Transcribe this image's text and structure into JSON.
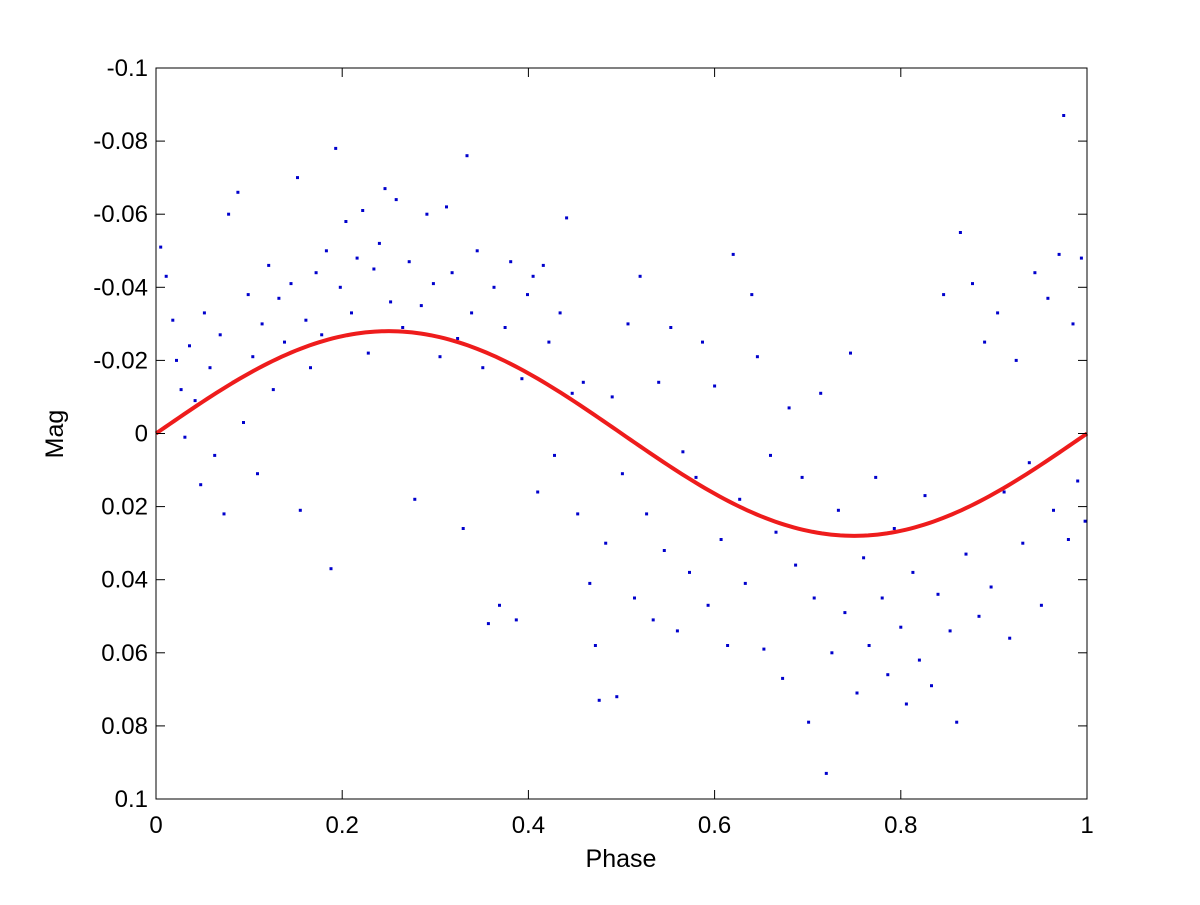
{
  "chart_data": {
    "type": "scatter",
    "xlabel": "Phase",
    "ylabel": "Mag",
    "xlim": [
      0,
      1
    ],
    "ylim": [
      -0.1,
      0.1
    ],
    "y_reversed": true,
    "grid": false,
    "x_ticks": [
      0,
      0.2,
      0.4,
      0.6,
      0.8,
      1
    ],
    "x_tick_labels": [
      "0",
      "0.2",
      "0.4",
      "0.6",
      "0.8",
      "1"
    ],
    "y_ticks": [
      -0.1,
      -0.08,
      -0.06,
      -0.04,
      -0.02,
      0,
      0.02,
      0.04,
      0.06,
      0.08,
      0.1
    ],
    "y_tick_labels": [
      "-0.1",
      "-0.08",
      "-0.06",
      "-0.04",
      "-0.02",
      "0",
      "0.02",
      "0.04",
      "0.06",
      "0.08",
      "0.1"
    ],
    "colors": {
      "points": "#0000cc",
      "fit": "#ee1c1c",
      "axes": "#000000",
      "background": "#ffffff"
    },
    "series": [
      {
        "kind": "scatter",
        "marker": "dot",
        "points": [
          [
            0.005,
            -0.051
          ],
          [
            0.011,
            -0.043
          ],
          [
            0.018,
            -0.031
          ],
          [
            0.022,
            -0.02
          ],
          [
            0.027,
            -0.012
          ],
          [
            0.031,
            0.001
          ],
          [
            0.036,
            -0.024
          ],
          [
            0.042,
            -0.009
          ],
          [
            0.048,
            0.014
          ],
          [
            0.052,
            -0.033
          ],
          [
            0.058,
            -0.018
          ],
          [
            0.063,
            0.006
          ],
          [
            0.069,
            -0.027
          ],
          [
            0.073,
            0.022
          ],
          [
            0.078,
            -0.06
          ],
          [
            0.083,
            -0.014
          ],
          [
            0.088,
            -0.066
          ],
          [
            0.094,
            -0.003
          ],
          [
            0.099,
            -0.038
          ],
          [
            0.104,
            -0.021
          ],
          [
            0.109,
            0.011
          ],
          [
            0.114,
            -0.03
          ],
          [
            0.121,
            -0.046
          ],
          [
            0.126,
            -0.012
          ],
          [
            0.132,
            -0.037
          ],
          [
            0.138,
            -0.025
          ],
          [
            0.145,
            -0.041
          ],
          [
            0.152,
            -0.07
          ],
          [
            0.155,
            0.021
          ],
          [
            0.161,
            -0.031
          ],
          [
            0.166,
            -0.018
          ],
          [
            0.172,
            -0.044
          ],
          [
            0.178,
            -0.027
          ],
          [
            0.183,
            -0.05
          ],
          [
            0.188,
            0.037
          ],
          [
            0.193,
            -0.078
          ],
          [
            0.198,
            -0.04
          ],
          [
            0.204,
            -0.058
          ],
          [
            0.21,
            -0.033
          ],
          [
            0.216,
            -0.048
          ],
          [
            0.222,
            -0.061
          ],
          [
            0.228,
            -0.022
          ],
          [
            0.234,
            -0.045
          ],
          [
            0.24,
            -0.052
          ],
          [
            0.246,
            -0.067
          ],
          [
            0.252,
            -0.036
          ],
          [
            0.258,
            -0.064
          ],
          [
            0.265,
            -0.029
          ],
          [
            0.272,
            -0.047
          ],
          [
            0.278,
            0.018
          ],
          [
            0.285,
            -0.035
          ],
          [
            0.291,
            -0.06
          ],
          [
            0.298,
            -0.041
          ],
          [
            0.305,
            -0.021
          ],
          [
            0.312,
            -0.062
          ],
          [
            0.318,
            -0.044
          ],
          [
            0.324,
            -0.026
          ],
          [
            0.33,
            0.026
          ],
          [
            0.334,
            -0.076
          ],
          [
            0.339,
            -0.033
          ],
          [
            0.345,
            -0.05
          ],
          [
            0.351,
            -0.018
          ],
          [
            0.357,
            0.052
          ],
          [
            0.363,
            -0.04
          ],
          [
            0.369,
            0.047
          ],
          [
            0.375,
            -0.029
          ],
          [
            0.381,
            -0.047
          ],
          [
            0.387,
            0.051
          ],
          [
            0.393,
            -0.015
          ],
          [
            0.399,
            -0.038
          ],
          [
            0.405,
            -0.043
          ],
          [
            0.41,
            0.016
          ],
          [
            0.416,
            -0.046
          ],
          [
            0.422,
            -0.025
          ],
          [
            0.428,
            0.006
          ],
          [
            0.434,
            -0.033
          ],
          [
            0.441,
            -0.059
          ],
          [
            0.447,
            -0.011
          ],
          [
            0.453,
            0.022
          ],
          [
            0.459,
            -0.014
          ],
          [
            0.466,
            0.041
          ],
          [
            0.472,
            0.058
          ],
          [
            0.476,
            0.073
          ],
          [
            0.483,
            0.03
          ],
          [
            0.49,
            -0.01
          ],
          [
            0.495,
            0.072
          ],
          [
            0.501,
            0.011
          ],
          [
            0.507,
            -0.03
          ],
          [
            0.514,
            0.045
          ],
          [
            0.52,
            -0.043
          ],
          [
            0.527,
            0.022
          ],
          [
            0.534,
            0.051
          ],
          [
            0.54,
            -0.014
          ],
          [
            0.546,
            0.032
          ],
          [
            0.553,
            -0.029
          ],
          [
            0.56,
            0.054
          ],
          [
            0.566,
            0.005
          ],
          [
            0.573,
            0.038
          ],
          [
            0.58,
            0.012
          ],
          [
            0.587,
            -0.025
          ],
          [
            0.593,
            0.047
          ],
          [
            0.6,
            -0.013
          ],
          [
            0.607,
            0.029
          ],
          [
            0.614,
            0.058
          ],
          [
            0.62,
            -0.049
          ],
          [
            0.627,
            0.018
          ],
          [
            0.633,
            0.041
          ],
          [
            0.64,
            -0.038
          ],
          [
            0.646,
            -0.021
          ],
          [
            0.653,
            0.059
          ],
          [
            0.66,
            0.006
          ],
          [
            0.666,
            0.027
          ],
          [
            0.673,
            0.067
          ],
          [
            0.68,
            -0.007
          ],
          [
            0.687,
            0.036
          ],
          [
            0.694,
            0.012
          ],
          [
            0.701,
            0.079
          ],
          [
            0.707,
            0.045
          ],
          [
            0.714,
            -0.011
          ],
          [
            0.72,
            0.093
          ],
          [
            0.726,
            0.06
          ],
          [
            0.733,
            0.021
          ],
          [
            0.74,
            0.049
          ],
          [
            0.746,
            -0.022
          ],
          [
            0.753,
            0.071
          ],
          [
            0.76,
            0.034
          ],
          [
            0.766,
            0.058
          ],
          [
            0.773,
            0.012
          ],
          [
            0.78,
            0.045
          ],
          [
            0.786,
            0.066
          ],
          [
            0.793,
            0.026
          ],
          [
            0.8,
            0.053
          ],
          [
            0.806,
            0.074
          ],
          [
            0.813,
            0.038
          ],
          [
            0.82,
            0.062
          ],
          [
            0.826,
            0.017
          ],
          [
            0.833,
            0.069
          ],
          [
            0.84,
            0.044
          ],
          [
            0.846,
            -0.038
          ],
          [
            0.853,
            0.054
          ],
          [
            0.86,
            0.079
          ],
          [
            0.864,
            -0.055
          ],
          [
            0.87,
            0.033
          ],
          [
            0.877,
            -0.041
          ],
          [
            0.884,
            0.05
          ],
          [
            0.89,
            -0.025
          ],
          [
            0.897,
            0.042
          ],
          [
            0.904,
            -0.033
          ],
          [
            0.911,
            0.016
          ],
          [
            0.917,
            0.056
          ],
          [
            0.924,
            -0.02
          ],
          [
            0.931,
            0.03
          ],
          [
            0.938,
            0.008
          ],
          [
            0.944,
            -0.044
          ],
          [
            0.951,
            0.047
          ],
          [
            0.958,
            -0.037
          ],
          [
            0.964,
            0.021
          ],
          [
            0.97,
            -0.049
          ],
          [
            0.975,
            -0.087
          ],
          [
            0.98,
            0.029
          ],
          [
            0.985,
            -0.03
          ],
          [
            0.99,
            0.013
          ],
          [
            0.994,
            -0.048
          ],
          [
            0.998,
            0.024
          ]
        ]
      },
      {
        "kind": "line",
        "function": "sine",
        "amplitude": 0.028,
        "period": 1,
        "peak_phase": 0.25,
        "trough_phase": 0.75
      }
    ]
  }
}
